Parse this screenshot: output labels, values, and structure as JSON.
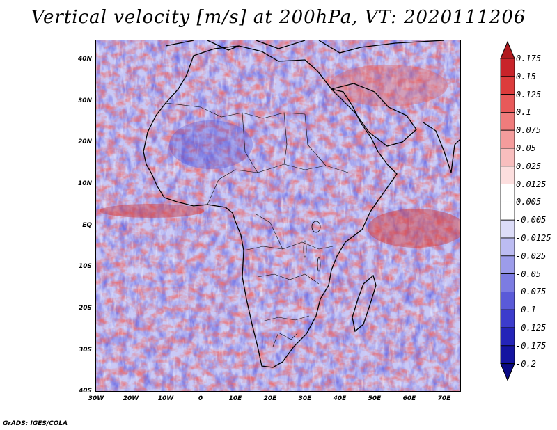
{
  "title": "Vertical velocity [m/s] at 200hPa, VT: 2020111206",
  "footer": "GrADS: IGES/COLA",
  "map": {
    "region": "Africa",
    "lon_range": [
      -30,
      75
    ],
    "lat_range": [
      -40,
      45
    ],
    "lat_labels": [
      "40N",
      "30N",
      "20N",
      "10N",
      "EQ",
      "10S",
      "20S",
      "30S",
      "40S"
    ],
    "lon_labels": [
      "30W",
      "20W",
      "10W",
      "0",
      "10E",
      "20E",
      "30E",
      "40E",
      "50E",
      "60E",
      "70E"
    ]
  },
  "colorbar": {
    "labels": [
      "0.175",
      "0.15",
      "0.125",
      "0.1",
      "0.075",
      "0.05",
      "0.025",
      "0.0125",
      "0.005",
      "-0.005",
      "-0.0125",
      "-0.025",
      "-0.05",
      "-0.075",
      "-0.1",
      "-0.125",
      "-0.175",
      "-0.2"
    ],
    "colors": [
      "#b0191e",
      "#c8242a",
      "#dc3c3c",
      "#e85a5a",
      "#ef7c7c",
      "#f49c9c",
      "#f8bebe",
      "#fcdede",
      "#ffffff",
      "#ffffff",
      "#dcdcf8",
      "#bcbcf2",
      "#9c9cea",
      "#7c7ce2",
      "#5a5ad8",
      "#3c3ccc",
      "#2424b8",
      "#1414a0",
      "#0a0a84"
    ]
  }
}
